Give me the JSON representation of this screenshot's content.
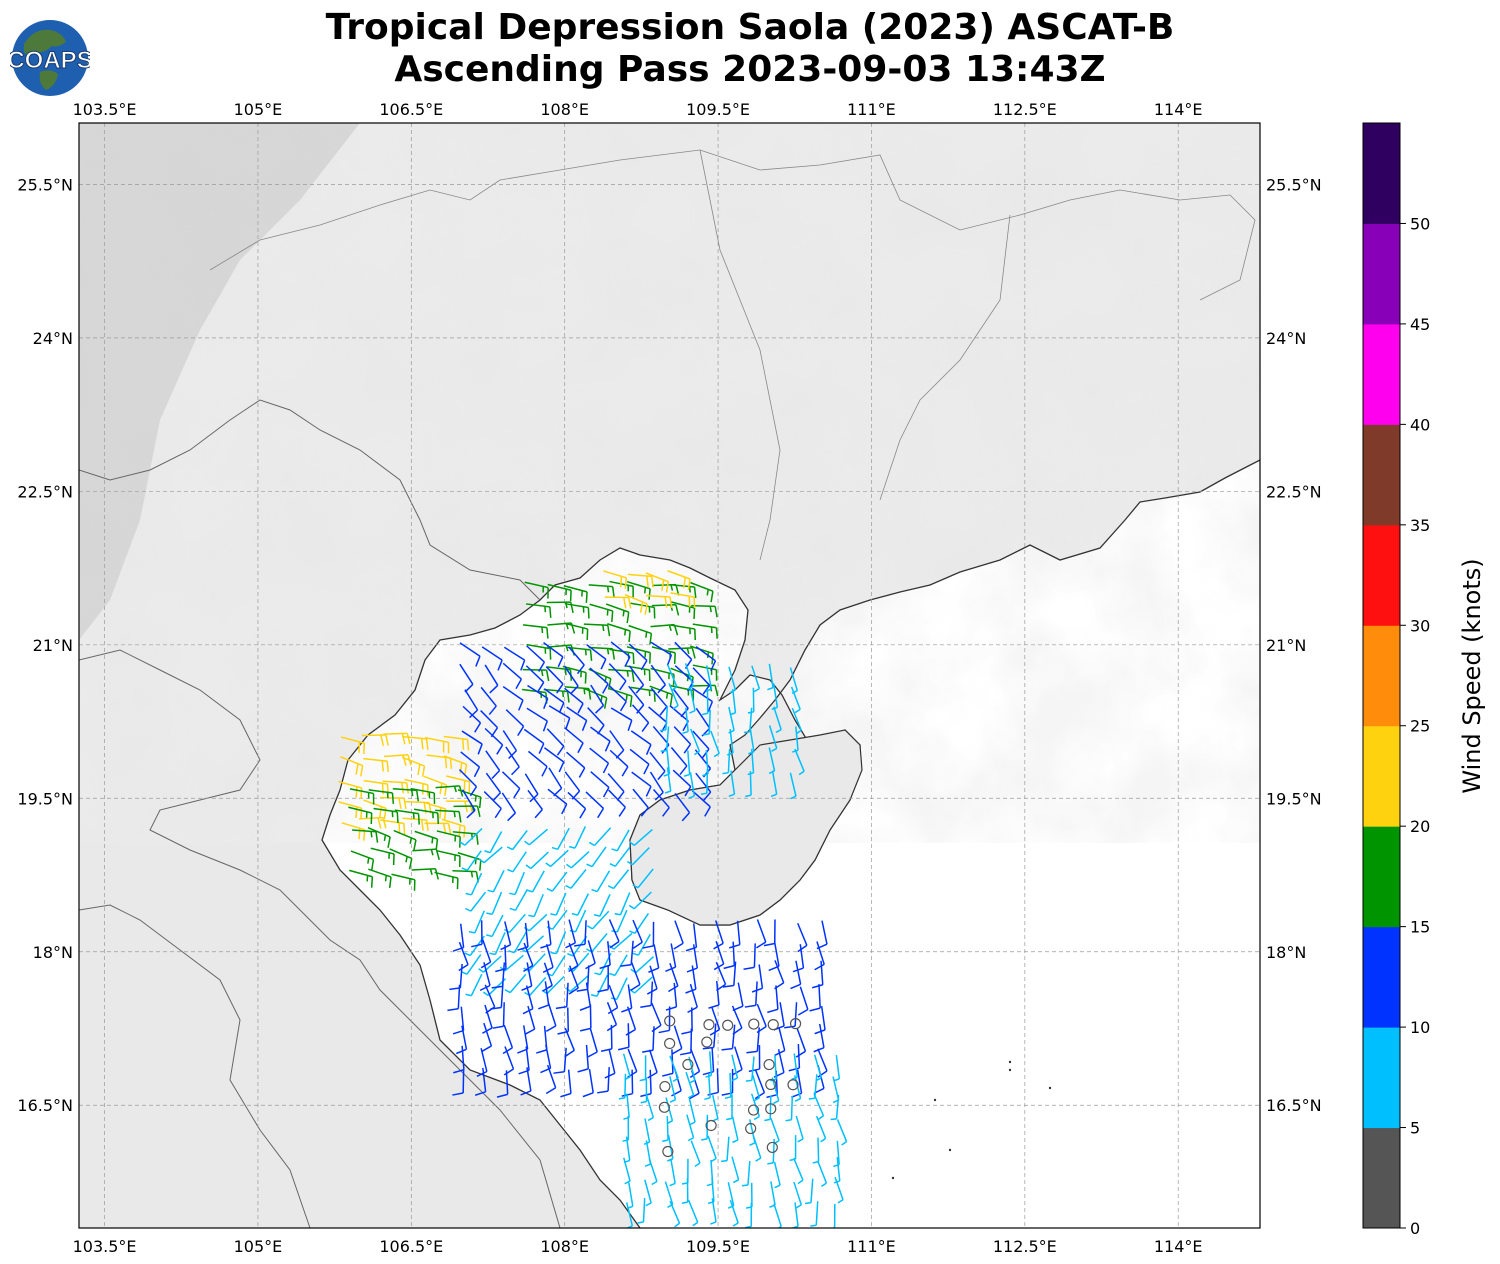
{
  "title": {
    "line1": "Tropical Depression Saola (2023) ASCAT-B",
    "line2": "Ascending Pass 2023-09-03 13:43Z"
  },
  "logo": {
    "text": "COAPS",
    "icon": "globe-logo-icon",
    "ocean_color": "#1f5fb0",
    "land_color": "#4d7a3a"
  },
  "map": {
    "lon_ticks": [
      "103.5°E",
      "105°E",
      "106.5°E",
      "108°E",
      "109.5°E",
      "111°E",
      "112.5°E",
      "114°E"
    ],
    "lat_ticks": [
      "25.5°N",
      "24°N",
      "22.5°N",
      "21°N",
      "19.5°N",
      "18°N",
      "16.5°N"
    ],
    "lon_values": [
      103.5,
      105,
      106.5,
      108,
      109.5,
      111,
      112.5,
      114
    ],
    "lat_values": [
      25.5,
      24,
      22.5,
      21,
      19.5,
      18,
      16.5
    ],
    "extent": {
      "lon_min": 103.25,
      "lon_max": 114.8,
      "lat_min": 15.3,
      "lat_max": 26.1
    },
    "land_color": "#e9e9e9",
    "ocean_color": "#ffffff",
    "coast_color": "#333333"
  },
  "colorbar": {
    "label": "Wind Speed (knots)",
    "tick_labels": [
      "0",
      "5",
      "10",
      "15",
      "20",
      "25",
      "30",
      "35",
      "40",
      "45",
      "50"
    ],
    "bins": [
      {
        "min": 0,
        "max": 5,
        "color": "#555555"
      },
      {
        "min": 5,
        "max": 10,
        "color": "#00bfff"
      },
      {
        "min": 10,
        "max": 15,
        "color": "#0033ff"
      },
      {
        "min": 15,
        "max": 20,
        "color": "#009400"
      },
      {
        "min": 20,
        "max": 25,
        "color": "#ffd20f"
      },
      {
        "min": 25,
        "max": 30,
        "color": "#ff8c0a"
      },
      {
        "min": 30,
        "max": 35,
        "color": "#ff1010"
      },
      {
        "min": 35,
        "max": 40,
        "color": "#803a2a"
      },
      {
        "min": 40,
        "max": 45,
        "color": "#ff00ee"
      },
      {
        "min": 45,
        "max": 50,
        "color": "#8800b8"
      },
      {
        "min": 50,
        "max": 55,
        "color": "#300060"
      }
    ]
  },
  "wind_regions": [
    {
      "name": "gulf-north",
      "lon": [
        107.6,
        109.4
      ],
      "lat": [
        20.4,
        21.6
      ],
      "speed": 17,
      "dir": "w"
    },
    {
      "name": "gulf-northeast",
      "lon": [
        108.4,
        109.2
      ],
      "lat": [
        21.3,
        21.7
      ],
      "speed": 22,
      "dir": "w"
    },
    {
      "name": "vietnam-coast-north",
      "lon": [
        105.8,
        106.9
      ],
      "lat": [
        19.1,
        20.1
      ],
      "speed": 22,
      "dir": "w"
    },
    {
      "name": "vietnam-coast-mid",
      "lon": [
        105.9,
        107.0
      ],
      "lat": [
        18.6,
        19.6
      ],
      "speed": 17,
      "dir": "w"
    },
    {
      "name": "gulf-central",
      "lon": [
        107.0,
        109.3
      ],
      "lat": [
        19.4,
        21.0
      ],
      "speed": 12,
      "dir": "nw"
    },
    {
      "name": "gulf-south",
      "lon": [
        107.2,
        109.0
      ],
      "lat": [
        17.7,
        19.2
      ],
      "speed": 8,
      "dir": "ne"
    },
    {
      "name": "hainan-west",
      "lon": [
        109.0,
        110.3
      ],
      "lat": [
        19.7,
        20.8
      ],
      "speed": 8,
      "dir": "n"
    },
    {
      "name": "central-vietnam-offshore",
      "lon": [
        107.0,
        110.6
      ],
      "lat": [
        16.8,
        18.3
      ],
      "speed": 11,
      "dir": "n"
    },
    {
      "name": "south-hainan",
      "lon": [
        108.6,
        110.8
      ],
      "lat": [
        15.4,
        17.0
      ],
      "speed": 8,
      "dir": "n"
    },
    {
      "name": "calm-center",
      "lon": [
        109.0,
        110.3
      ],
      "lat": [
        16.0,
        17.3
      ],
      "speed": 3,
      "dir": "calm"
    }
  ]
}
